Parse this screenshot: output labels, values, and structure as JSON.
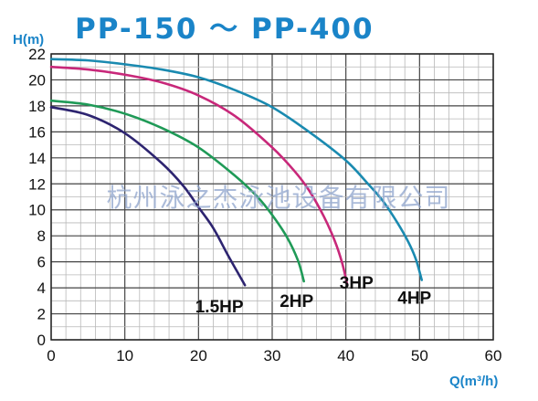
{
  "chart_data": {
    "type": "line",
    "title": "PP-150 ～ PP-400",
    "xlabel": "Q(m³/h)",
    "ylabel": "H(m)",
    "xlim": [
      0,
      60
    ],
    "ylim": [
      0,
      22
    ],
    "x_ticks": [
      0,
      10,
      20,
      30,
      40,
      50,
      60
    ],
    "y_ticks": [
      0,
      2,
      4,
      6,
      8,
      10,
      12,
      14,
      16,
      18,
      20,
      22
    ],
    "grid": true,
    "watermark": "杭州泳之杰泳池设备有限公司",
    "series": [
      {
        "name": "1.5HP",
        "color": "#2d2470",
        "x": [
          0,
          5,
          10,
          15,
          18,
          20,
          22,
          24,
          25.5,
          26.3
        ],
        "y": [
          17.9,
          17.3,
          15.9,
          13.6,
          11.8,
          10.2,
          8.6,
          6.5,
          5.0,
          4.2
        ]
      },
      {
        "name": "2HP",
        "color": "#1f9a57",
        "x": [
          0,
          5,
          10,
          15,
          20,
          25,
          28,
          30,
          32,
          33.5,
          34.3
        ],
        "y": [
          18.4,
          18.1,
          17.4,
          16.3,
          14.8,
          12.6,
          11.0,
          9.6,
          7.9,
          6.1,
          4.5
        ]
      },
      {
        "name": "3HP",
        "color": "#c8287a",
        "x": [
          0,
          5,
          10,
          15,
          20,
          25,
          30,
          33,
          35,
          37,
          38.5,
          39.5,
          40.2
        ],
        "y": [
          21.0,
          20.8,
          20.4,
          19.8,
          18.8,
          17.2,
          14.8,
          13.0,
          11.5,
          9.5,
          7.6,
          5.9,
          4.2
        ]
      },
      {
        "name": "4HP",
        "color": "#1a8ab0",
        "x": [
          0,
          5,
          10,
          15,
          20,
          25,
          30,
          35,
          40,
          43,
          45,
          47,
          48.5,
          49.5,
          50.3
        ],
        "y": [
          21.6,
          21.5,
          21.2,
          20.8,
          20.2,
          19.2,
          17.9,
          16.0,
          13.8,
          12.0,
          10.7,
          9.0,
          7.5,
          6.2,
          4.6
        ]
      }
    ]
  }
}
